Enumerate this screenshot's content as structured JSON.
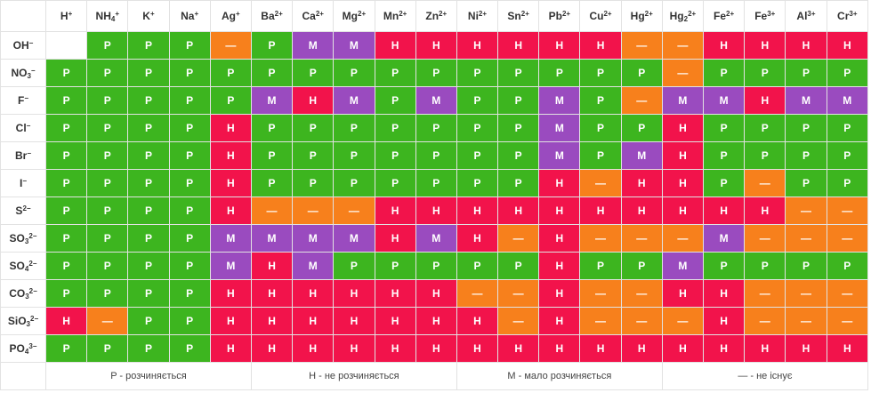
{
  "cations": [
    {
      "base": "H",
      "sub": "",
      "sup": "+"
    },
    {
      "base": "NH",
      "sub": "4",
      "sup": "+"
    },
    {
      "base": "K",
      "sub": "",
      "sup": "+"
    },
    {
      "base": "Na",
      "sub": "",
      "sup": "+"
    },
    {
      "base": "Ag",
      "sub": "",
      "sup": "+"
    },
    {
      "base": "Ba",
      "sub": "",
      "sup": "2+"
    },
    {
      "base": "Ca",
      "sub": "",
      "sup": "2+"
    },
    {
      "base": "Mg",
      "sub": "",
      "sup": "2+"
    },
    {
      "base": "Mn",
      "sub": "",
      "sup": "2+"
    },
    {
      "base": "Zn",
      "sub": "",
      "sup": "2+"
    },
    {
      "base": "Ni",
      "sub": "",
      "sup": "2+"
    },
    {
      "base": "Sn",
      "sub": "",
      "sup": "2+"
    },
    {
      "base": "Pb",
      "sub": "",
      "sup": "2+"
    },
    {
      "base": "Cu",
      "sub": "",
      "sup": "2+"
    },
    {
      "base": "Hg",
      "sub": "",
      "sup": "2+"
    },
    {
      "base": "Hg",
      "sub": "2",
      "sup": "2+"
    },
    {
      "base": "Fe",
      "sub": "",
      "sup": "2+"
    },
    {
      "base": "Fe",
      "sub": "",
      "sup": "3+"
    },
    {
      "base": "Al",
      "sub": "",
      "sup": "3+"
    },
    {
      "base": "Cr",
      "sub": "",
      "sup": "3+"
    }
  ],
  "anions": [
    {
      "base": "OH",
      "sub": "",
      "sup": "−",
      "cells": [
        "",
        "P",
        "P",
        "P",
        "—",
        "P",
        "M",
        "M",
        "H",
        "H",
        "H",
        "H",
        "H",
        "H",
        "—",
        "—",
        "H",
        "H",
        "H",
        "H"
      ]
    },
    {
      "base": "NO",
      "sub": "3",
      "sup": "−",
      "cells": [
        "P",
        "P",
        "P",
        "P",
        "P",
        "P",
        "P",
        "P",
        "P",
        "P",
        "P",
        "P",
        "P",
        "P",
        "P",
        "—",
        "P",
        "P",
        "P",
        "P"
      ]
    },
    {
      "base": "F",
      "sub": "",
      "sup": "−",
      "cells": [
        "P",
        "P",
        "P",
        "P",
        "P",
        "M",
        "H",
        "M",
        "P",
        "M",
        "P",
        "P",
        "M",
        "P",
        "—",
        "M",
        "M",
        "H",
        "M",
        "M"
      ]
    },
    {
      "base": "Cl",
      "sub": "",
      "sup": "−",
      "cells": [
        "P",
        "P",
        "P",
        "P",
        "H",
        "P",
        "P",
        "P",
        "P",
        "P",
        "P",
        "P",
        "M",
        "P",
        "P",
        "H",
        "P",
        "P",
        "P",
        "P"
      ]
    },
    {
      "base": "Br",
      "sub": "",
      "sup": "−",
      "cells": [
        "P",
        "P",
        "P",
        "P",
        "H",
        "P",
        "P",
        "P",
        "P",
        "P",
        "P",
        "P",
        "M",
        "P",
        "M",
        "H",
        "P",
        "P",
        "P",
        "P"
      ]
    },
    {
      "base": "I",
      "sub": "",
      "sup": "−",
      "cells": [
        "P",
        "P",
        "P",
        "P",
        "H",
        "P",
        "P",
        "P",
        "P",
        "P",
        "P",
        "P",
        "H",
        "—",
        "H",
        "H",
        "P",
        "—",
        "P",
        "P"
      ]
    },
    {
      "base": "S",
      "sub": "",
      "sup": "2−",
      "cells": [
        "P",
        "P",
        "P",
        "P",
        "H",
        "—",
        "—",
        "—",
        "H",
        "H",
        "H",
        "H",
        "H",
        "H",
        "H",
        "H",
        "H",
        "H",
        "—",
        "—"
      ]
    },
    {
      "base": "SO",
      "sub": "3",
      "sup": "2−",
      "cells": [
        "P",
        "P",
        "P",
        "P",
        "M",
        "M",
        "M",
        "M",
        "H",
        "M",
        "H",
        "—",
        "H",
        "—",
        "—",
        "—",
        "M",
        "—",
        "—",
        "—"
      ]
    },
    {
      "base": "SO",
      "sub": "4",
      "sup": "2−",
      "cells": [
        "P",
        "P",
        "P",
        "P",
        "M",
        "H",
        "M",
        "P",
        "P",
        "P",
        "P",
        "P",
        "H",
        "P",
        "P",
        "M",
        "P",
        "P",
        "P",
        "P"
      ]
    },
    {
      "base": "CO",
      "sub": "3",
      "sup": "2−",
      "cells": [
        "P",
        "P",
        "P",
        "P",
        "H",
        "H",
        "H",
        "H",
        "H",
        "H",
        "—",
        "—",
        "H",
        "—",
        "—",
        "H",
        "H",
        "—",
        "—",
        "—"
      ]
    },
    {
      "base": "SiO",
      "sub": "3",
      "sup": "2−",
      "cells": [
        "H",
        "—",
        "P",
        "P",
        "H",
        "H",
        "H",
        "H",
        "H",
        "H",
        "H",
        "—",
        "H",
        "—",
        "—",
        "—",
        "H",
        "—",
        "—",
        "—"
      ]
    },
    {
      "base": "PO",
      "sub": "4",
      "sup": "3−",
      "cells": [
        "P",
        "P",
        "P",
        "P",
        "H",
        "H",
        "H",
        "H",
        "H",
        "H",
        "H",
        "H",
        "H",
        "H",
        "H",
        "H",
        "H",
        "H",
        "H",
        "H"
      ]
    }
  ],
  "legend": {
    "soluble": "P - розчиняється",
    "insoluble": "H - не розчиняється",
    "slightly": "M - мало розчиняється",
    "absent": "— - не існує"
  },
  "colors": {
    "soluble": "#3db51f",
    "insoluble": "#f2134b",
    "slightly": "#9a4bbf",
    "absent": "#f7801c"
  }
}
